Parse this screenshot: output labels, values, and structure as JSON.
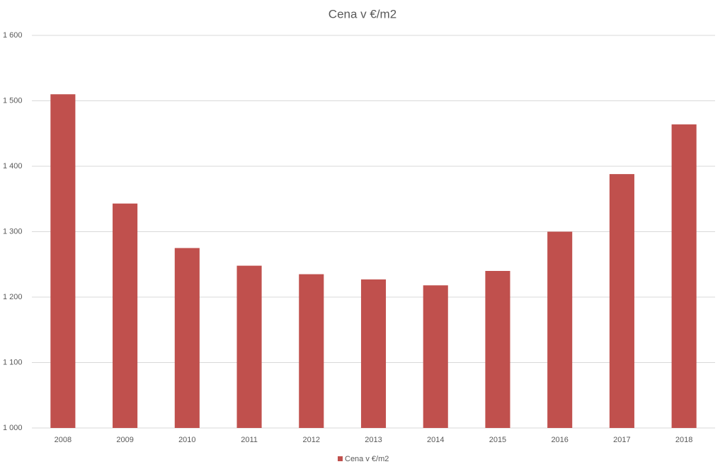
{
  "chart_data": {
    "type": "bar",
    "title": "Cena v €/m2",
    "categories": [
      "2008",
      "2009",
      "2010",
      "2011",
      "2012",
      "2013",
      "2014",
      "2015",
      "2016",
      "2017",
      "2018"
    ],
    "series": [
      {
        "name": "Cena v €/m2",
        "color": "#c0504d",
        "values": [
          1510,
          1343,
          1275,
          1248,
          1235,
          1227,
          1218,
          1240,
          1300,
          1388,
          1464
        ]
      }
    ],
    "ylim": [
      1000,
      1600
    ],
    "yticks": [
      {
        "value": 1000,
        "label": "1 000"
      },
      {
        "value": 1100,
        "label": "1 100"
      },
      {
        "value": 1200,
        "label": "1 200"
      },
      {
        "value": 1300,
        "label": "1 300"
      },
      {
        "value": 1400,
        "label": "1 400"
      },
      {
        "value": 1500,
        "label": "1 500"
      },
      {
        "value": 1600,
        "label": "1 600"
      }
    ],
    "grid": true,
    "legend": "bottom"
  }
}
